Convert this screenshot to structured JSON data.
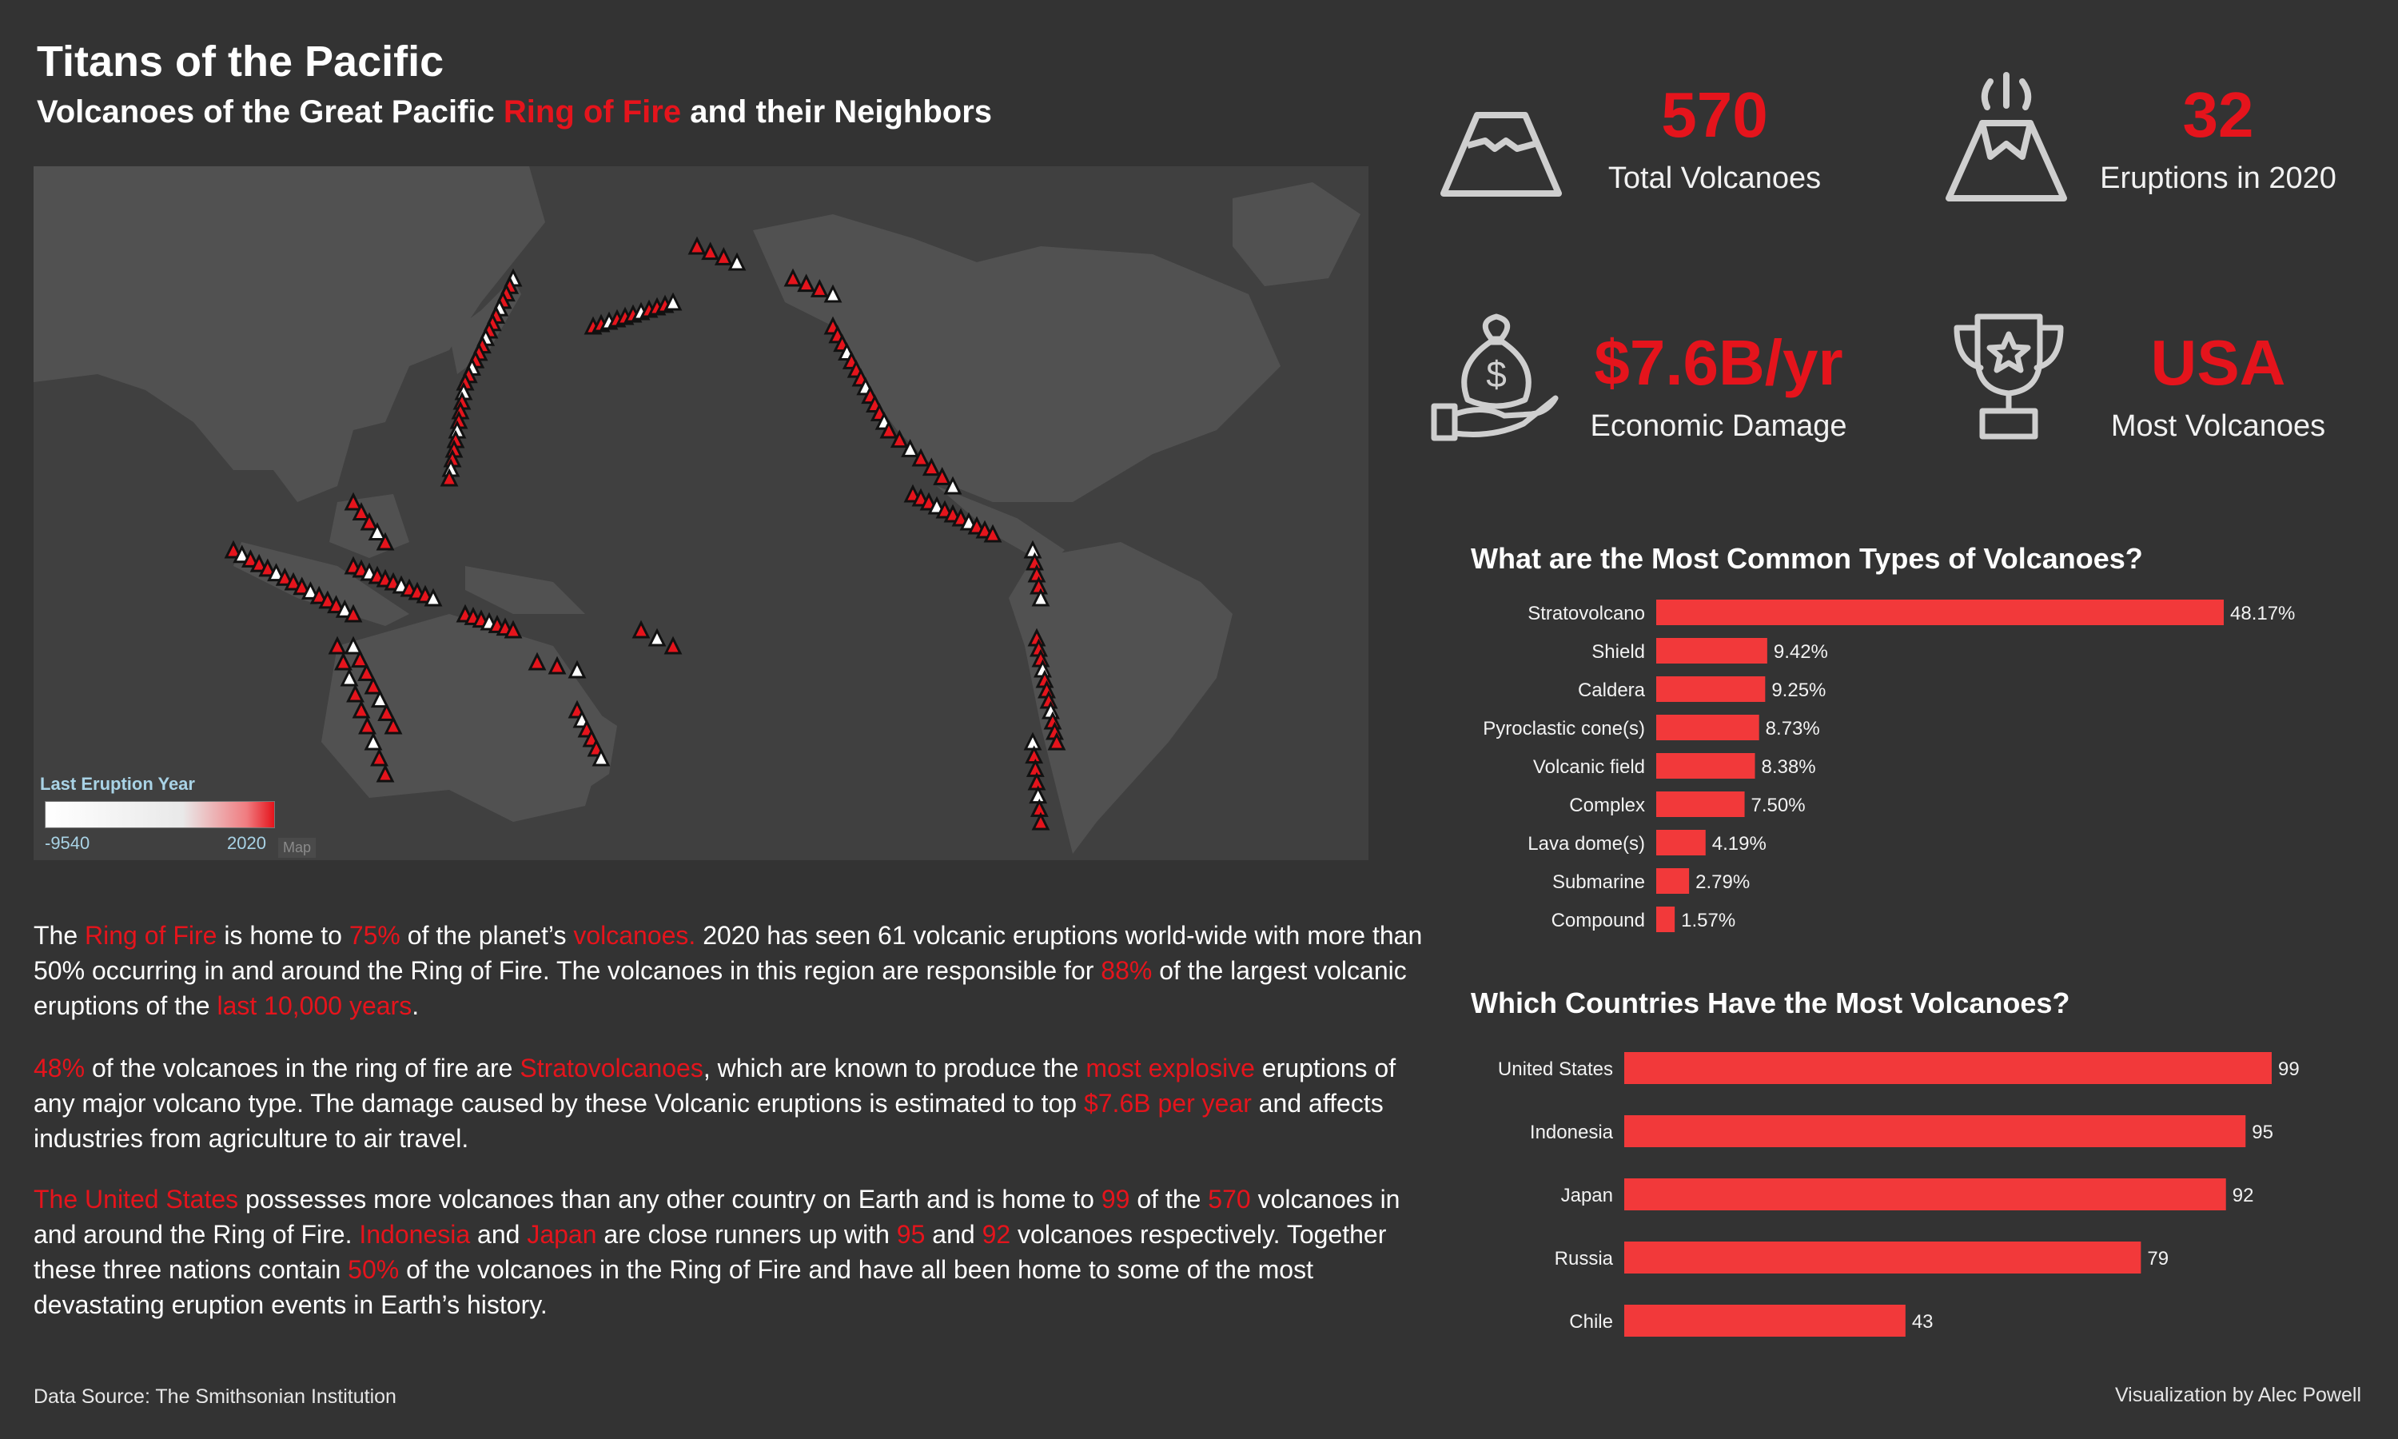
{
  "title": "Titans of the Pacific",
  "subtitle_pre": "Volcanoes of the Great Pacific ",
  "subtitle_red": "Ring of Fire",
  "subtitle_post": " and their Neighbors",
  "colors": {
    "accent": "#e5141c",
    "bar": "#f2393a",
    "background": "#333333",
    "map_bg": "#404040",
    "land": "#555555",
    "legend_text": "#a9d3e6"
  },
  "kpis": [
    {
      "value": "570",
      "label": "Total Volcanoes",
      "icon": "mountain-icon"
    },
    {
      "value": "32",
      "label": "Eruptions in 2020",
      "icon": "erupting-volcano-icon"
    },
    {
      "value": "$7.6B/yr",
      "label": "Economic Damage",
      "icon": "money-bag-hand-icon"
    },
    {
      "value": "USA",
      "label": "Most Volcanoes",
      "icon": "trophy-icon"
    }
  ],
  "map": {
    "legend_title": "Last Eruption Year",
    "legend_min": "-9540",
    "legend_max": "2020",
    "tag": "Map"
  },
  "paragraphs": [
    [
      {
        "t": "The ",
        "r": false
      },
      {
        "t": "Ring of Fire",
        "r": true
      },
      {
        "t": " is home to ",
        "r": false
      },
      {
        "t": "75%",
        "r": true
      },
      {
        "t": " of the planet’s ",
        "r": false
      },
      {
        "t": "volcanoes.",
        "r": true
      },
      {
        "t": " 2020 has seen 61 volcanic eruptions world-wide with more than 50%  occurring in and around the Ring of Fire. The volcanoes in this region are responsible for ",
        "r": false
      },
      {
        "t": "88%",
        "r": true
      },
      {
        "t": " of the largest volcanic eruptions of the ",
        "r": false
      },
      {
        "t": "last 10,000 years",
        "r": true
      },
      {
        "t": ".",
        "r": false
      }
    ],
    [
      {
        "t": "48%",
        "r": true
      },
      {
        "t": " of the volcanoes in the ring of fire are ",
        "r": false
      },
      {
        "t": "Stratovolcanoes",
        "r": true
      },
      {
        "t": ", which are known to produce the ",
        "r": false
      },
      {
        "t": "most explosive",
        "r": true
      },
      {
        "t": " eruptions of any major volcano type. The damage caused by these Volcanic eruptions is estimated to top ",
        "r": false
      },
      {
        "t": "$7.6B per year",
        "r": true
      },
      {
        "t": " and affects industries from agriculture to air travel.",
        "r": false
      }
    ],
    [
      {
        "t": "The United States",
        "r": true
      },
      {
        "t": " possesses more volcanoes than any other country on Earth and is home to ",
        "r": false
      },
      {
        "t": "99",
        "r": true
      },
      {
        "t": " of the ",
        "r": false
      },
      {
        "t": "570",
        "r": true
      },
      {
        "t": " volcanoes in and around the Ring of Fire. ",
        "r": false
      },
      {
        "t": "Indonesia",
        "r": true
      },
      {
        "t": " and ",
        "r": false
      },
      {
        "t": "Japan",
        "r": true
      },
      {
        "t": " are close runners up with ",
        "r": false
      },
      {
        "t": "95",
        "r": true
      },
      {
        "t": " and ",
        "r": false
      },
      {
        "t": "92",
        "r": true
      },
      {
        "t": " volcanoes respectively. Together these three nations contain ",
        "r": false
      },
      {
        "t": "50%",
        "r": true
      },
      {
        "t": " of the volcanoes in the Ring of Fire and have all been home to some of the most devastating  eruption events in Earth’s history.",
        "r": false
      }
    ]
  ],
  "footer_left": "Data Source: The Smithsonian Institution",
  "footer_right": "Visualization by Alec Powell",
  "chart_data": [
    {
      "type": "bar",
      "orientation": "horizontal",
      "title": "What are the Most Common Types of Volcanoes?",
      "categories": [
        "Stratovolcano",
        "Shield",
        "Caldera",
        "Pyroclastic cone(s)",
        "Volcanic field",
        "Complex",
        "Lava dome(s)",
        "Submarine",
        "Compound"
      ],
      "values": [
        48.17,
        9.42,
        9.25,
        8.73,
        8.38,
        7.5,
        4.19,
        2.79,
        1.57
      ],
      "labels": [
        "48.17%",
        "9.42%",
        "9.25%",
        "8.73%",
        "8.38%",
        "7.50%",
        "4.19%",
        "2.79%",
        "1.57%"
      ],
      "max": 48.17
    },
    {
      "type": "bar",
      "orientation": "horizontal",
      "title": "Which Countries Have the Most Volcanoes?",
      "categories": [
        "United States",
        "Indonesia",
        "Japan",
        "Russia",
        "Chile"
      ],
      "values": [
        99,
        95,
        92,
        79,
        43
      ],
      "labels": [
        "99",
        "95",
        "92",
        "79",
        "43"
      ],
      "max": 99
    }
  ]
}
